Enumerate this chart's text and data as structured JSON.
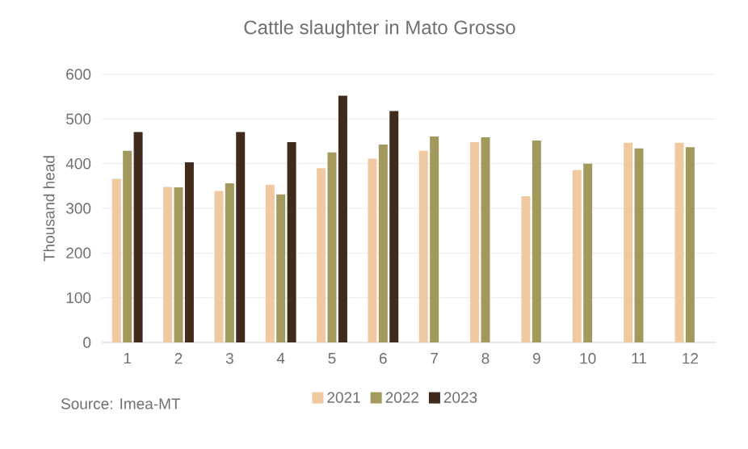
{
  "chart_data": {
    "type": "bar",
    "title": "Cattle slaughter in Mato Grosso",
    "ylabel": "Thousand head",
    "categories": [
      "1",
      "2",
      "3",
      "4",
      "5",
      "6",
      "7",
      "8",
      "9",
      "10",
      "11",
      "12"
    ],
    "series": [
      {
        "name": "2021",
        "color": "#f0c9a0",
        "values": [
          366,
          348,
          339,
          353,
          390,
          411,
          429,
          448,
          327,
          386,
          447,
          447
        ]
      },
      {
        "name": "2022",
        "color": "#a29a5c",
        "values": [
          429,
          347,
          356,
          331,
          425,
          443,
          461,
          459,
          452,
          400,
          434,
          437
        ]
      },
      {
        "name": "2023",
        "color": "#3f2a1c",
        "values": [
          471,
          403,
          471,
          448,
          552,
          518,
          null,
          null,
          null,
          null,
          null,
          null
        ]
      }
    ],
    "ylim": [
      0,
      600
    ],
    "yticks": [
      0,
      100,
      200,
      300,
      400,
      500,
      600
    ],
    "grid": "y",
    "legend": "bottom",
    "annotations": [
      "Source: Imea-MT"
    ]
  }
}
